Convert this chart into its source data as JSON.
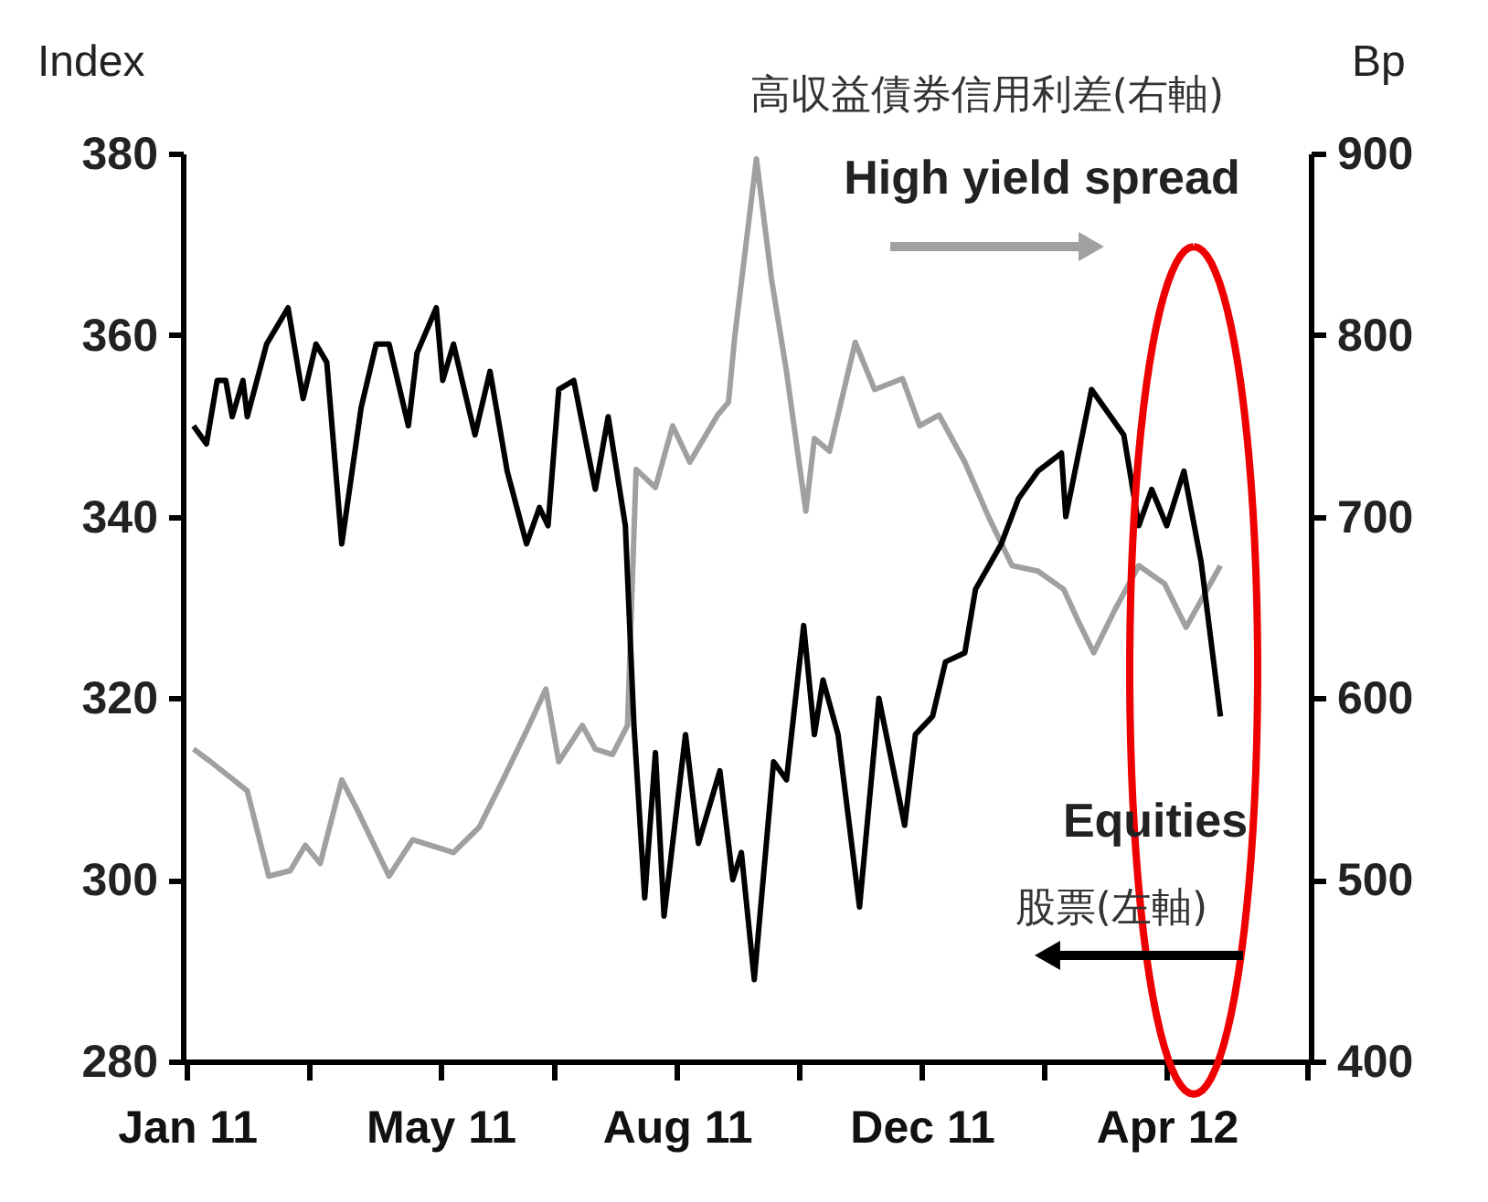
{
  "chart_data": {
    "type": "line",
    "ylabel": "Index",
    "y2label": "Bp",
    "xlim": [
      "2011-01-01",
      "2012-06-09"
    ],
    "xticks": [
      {
        "value": "2011-01-03",
        "label": "Jan 11"
      },
      {
        "value": "2011-03-01",
        "label": null
      },
      {
        "value": "2011-05-01",
        "label": "May 11"
      },
      {
        "value": "2011-06-23",
        "label": null
      },
      {
        "value": "2011-08-19",
        "label": "Aug 11"
      },
      {
        "value": "2011-10-15",
        "label": null
      },
      {
        "value": "2011-12-11",
        "label": "Dec 11"
      },
      {
        "value": "2012-02-06",
        "label": null
      },
      {
        "value": "2012-04-03",
        "label": "Apr 12"
      },
      {
        "value": "2012-06-07",
        "label": null
      }
    ],
    "ylim": [
      280,
      380
    ],
    "yticks": [
      280,
      300,
      320,
      340,
      360,
      380
    ],
    "y2lim": [
      400,
      900
    ],
    "y2ticks": [
      400,
      500,
      600,
      700,
      800,
      900
    ],
    "line_style": "solid",
    "annotations": [
      "高収益債券信用利差(右軸)",
      "股票(左軸)"
    ],
    "series": [
      {
        "name": "Equities",
        "color": "#000000",
        "x": [
          "2011-01-06",
          "2011-01-12",
          "2011-01-17",
          "2011-01-21",
          "2011-01-24",
          "2011-01-29",
          "2011-01-31",
          "2011-02-09",
          "2011-02-19",
          "2011-02-26",
          "2011-03-04",
          "2011-03-09",
          "2011-03-16",
          "2011-03-25",
          "2011-04-01",
          "2011-04-07",
          "2011-04-16",
          "2011-04-20",
          "2011-04-29",
          "2011-05-02",
          "2011-05-07",
          "2011-05-17",
          "2011-05-24",
          "2011-06-01",
          "2011-06-10",
          "2011-06-16",
          "2011-06-20",
          "2011-06-25",
          "2011-07-02",
          "2011-07-12",
          "2011-07-18",
          "2011-07-26",
          "2011-07-30",
          "2011-08-04",
          "2011-08-09",
          "2011-08-13",
          "2011-08-23",
          "2011-08-29",
          "2011-09-08",
          "2011-09-14",
          "2011-09-18",
          "2011-09-24",
          "2011-10-03",
          "2011-10-09",
          "2011-10-17",
          "2011-10-22",
          "2011-10-26",
          "2011-11-02",
          "2011-11-12",
          "2011-11-21",
          "2011-12-03",
          "2011-12-08",
          "2011-12-16",
          "2011-12-22",
          "2011-12-31",
          "2012-01-05",
          "2012-01-17",
          "2012-01-25",
          "2012-02-03",
          "2012-02-14",
          "2012-02-16",
          "2012-02-22",
          "2012-02-28",
          "2012-03-08",
          "2012-03-14",
          "2012-03-21",
          "2012-03-27",
          "2012-04-03",
          "2012-04-11",
          "2012-04-19",
          "2012-04-28"
        ],
        "values": [
          350,
          348,
          355,
          355,
          351,
          355,
          351,
          359,
          363,
          353,
          359,
          357,
          337,
          352,
          359,
          359,
          350,
          358,
          363,
          355,
          359,
          349,
          356,
          345,
          337,
          341,
          339,
          354,
          355,
          343,
          351,
          339,
          317,
          298,
          314,
          296,
          316,
          304,
          312,
          300,
          303,
          289,
          313,
          311,
          328,
          316,
          322,
          316,
          297,
          320,
          306,
          316,
          318,
          324,
          325,
          332,
          337,
          342,
          345,
          347,
          340,
          347,
          354,
          351,
          349,
          339,
          343,
          339,
          345,
          335,
          318
        ]
      },
      {
        "name": "High yield spread",
        "color": "#a0a0a0",
        "axis": "y2",
        "x": [
          "2011-01-06",
          "2011-01-14",
          "2011-01-31",
          "2011-02-10",
          "2011-02-20",
          "2011-02-27",
          "2011-03-06",
          "2011-03-16",
          "2011-03-23",
          "2011-04-07",
          "2011-04-18",
          "2011-05-07",
          "2011-05-19",
          "2011-05-30",
          "2011-06-10",
          "2011-06-19",
          "2011-06-25",
          "2011-07-06",
          "2011-07-12",
          "2011-07-20",
          "2011-07-27",
          "2011-07-31",
          "2011-08-09",
          "2011-08-17",
          "2011-08-25",
          "2011-09-07",
          "2011-09-12",
          "2011-09-15",
          "2011-09-25",
          "2011-10-02",
          "2011-10-09",
          "2011-10-18",
          "2011-10-22",
          "2011-10-29",
          "2011-11-10",
          "2011-11-19",
          "2011-12-02",
          "2011-12-10",
          "2011-12-19",
          "2011-12-31",
          "2012-01-11",
          "2012-01-22",
          "2012-02-03",
          "2012-02-15",
          "2012-02-22",
          "2012-02-29",
          "2012-03-10",
          "2012-03-21",
          "2012-04-02",
          "2012-04-12",
          "2012-04-20",
          "2012-04-28"
        ],
        "values": [
          572,
          565,
          549,
          502,
          505,
          519,
          509,
          555,
          539,
          502,
          522,
          515,
          529,
          555,
          582,
          605,
          565,
          585,
          572,
          569,
          585,
          726,
          716,
          750,
          730,
          756,
          763,
          800,
          897,
          831,
          780,
          703,
          743,
          736,
          796,
          770,
          776,
          750,
          756,
          730,
          700,
          673,
          670,
          660,
          642,
          625,
          649,
          673,
          663,
          639,
          656,
          673
        ]
      }
    ]
  }
}
